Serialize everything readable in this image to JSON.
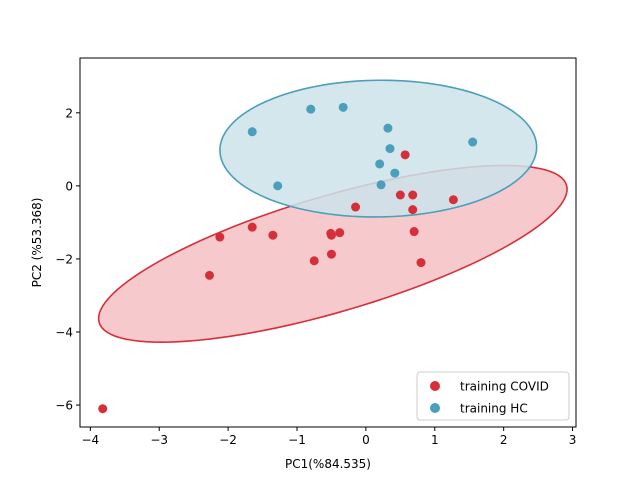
{
  "chart_data": {
    "type": "scatter",
    "title": "",
    "xlabel": "PC1(%84.535)",
    "ylabel": "PC2 (%53.368)",
    "xlim": [
      -4.15,
      3.05
    ],
    "ylim": [
      -6.6,
      3.5
    ],
    "xticks": [
      -4,
      -3,
      -2,
      -1,
      0,
      1,
      2,
      3
    ],
    "yticks": [
      -6,
      -4,
      -2,
      0,
      2
    ],
    "grid": false,
    "legend_position": "lower-right",
    "series": [
      {
        "name": "training COVID",
        "color": "#d62f3a",
        "ellipse_fill": "#f4c1c3",
        "ellipse_edge": "#d62f3a",
        "ellipse": {
          "center": [
            -0.48,
            -1.86
          ],
          "semi_major": 3.92,
          "semi_minor": 1.43,
          "angle_deg": 32.3
        },
        "points": [
          [
            -3.82,
            -6.1
          ],
          [
            -2.27,
            -2.45
          ],
          [
            -2.12,
            -1.4
          ],
          [
            -1.65,
            -1.13
          ],
          [
            -1.35,
            -1.35
          ],
          [
            -0.75,
            -2.05
          ],
          [
            -0.51,
            -1.3
          ],
          [
            -0.5,
            -1.35
          ],
          [
            -0.5,
            -1.87
          ],
          [
            -0.38,
            -1.28
          ],
          [
            -0.15,
            -0.58
          ],
          [
            0.5,
            -0.25
          ],
          [
            0.57,
            0.85
          ],
          [
            0.68,
            -0.25
          ],
          [
            0.68,
            -0.65
          ],
          [
            0.7,
            -1.25
          ],
          [
            0.8,
            -2.1
          ],
          [
            1.27,
            -0.38
          ]
        ]
      },
      {
        "name": "training HC",
        "color": "#4b9fba",
        "ellipse_fill": "#cbe3ea",
        "ellipse_edge": "#4b9fba",
        "ellipse": {
          "center": [
            0.18,
            1.02
          ],
          "semi_major": 2.3,
          "semi_minor": 1.87,
          "angle_deg": 3
        },
        "points": [
          [
            -1.65,
            1.48
          ],
          [
            -1.28,
            0.0
          ],
          [
            -0.8,
            2.1
          ],
          [
            -0.33,
            2.15
          ],
          [
            0.2,
            0.6
          ],
          [
            0.22,
            0.03
          ],
          [
            0.32,
            1.58
          ],
          [
            0.35,
            1.02
          ],
          [
            0.42,
            0.35
          ],
          [
            1.55,
            1.2
          ]
        ]
      }
    ]
  }
}
